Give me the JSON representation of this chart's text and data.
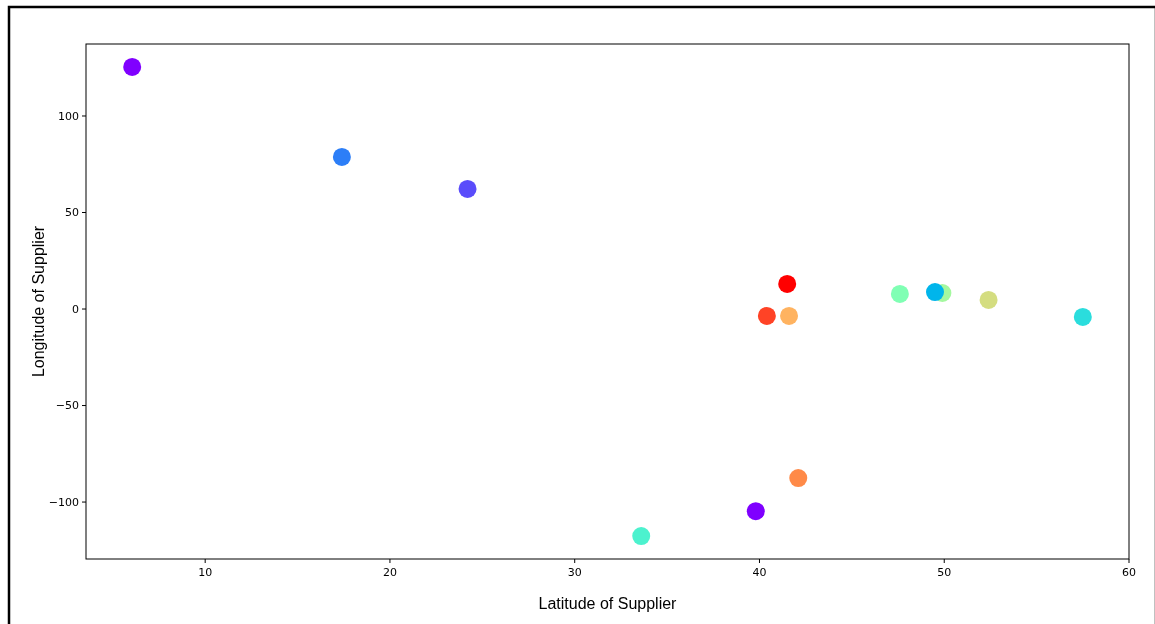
{
  "chart_data": {
    "type": "scatter",
    "xlabel": "Latitude of Supplier",
    "ylabel": "Longitude of Supplier",
    "x": [
      6.05,
      17.4,
      24.2,
      41.5,
      40.4,
      41.6,
      47.6,
      49.9,
      49.5,
      52.4,
      57.5,
      42.1,
      39.8,
      33.6
    ],
    "values": [
      125.4,
      78.8,
      62.2,
      13.0,
      -3.6,
      -3.6,
      7.8,
      8.3,
      8.8,
      4.7,
      -4.1,
      -87.6,
      -104.7,
      -117.6
    ],
    "colors": [
      "#8000ff",
      "#2c7ef7",
      "#5a4cfb",
      "#ff0000",
      "#ff4326",
      "#ffb360",
      "#80ffb4",
      "#a4f89f",
      "#00b5eb",
      "#d4dd80",
      "#2adddd",
      "#ff8a48",
      "#7f00ff",
      "#4cf2ce"
    ],
    "xlim": [
      3.55,
      60
    ],
    "ylim": [
      -129.5,
      137.3
    ],
    "xticks": [
      10,
      20,
      30,
      40,
      50,
      60
    ],
    "yticks": [
      {
        "value": -100,
        "label": "−100"
      },
      {
        "value": -50,
        "label": "−50"
      },
      0,
      50,
      100
    ],
    "marker": "circle",
    "grid": false
  }
}
